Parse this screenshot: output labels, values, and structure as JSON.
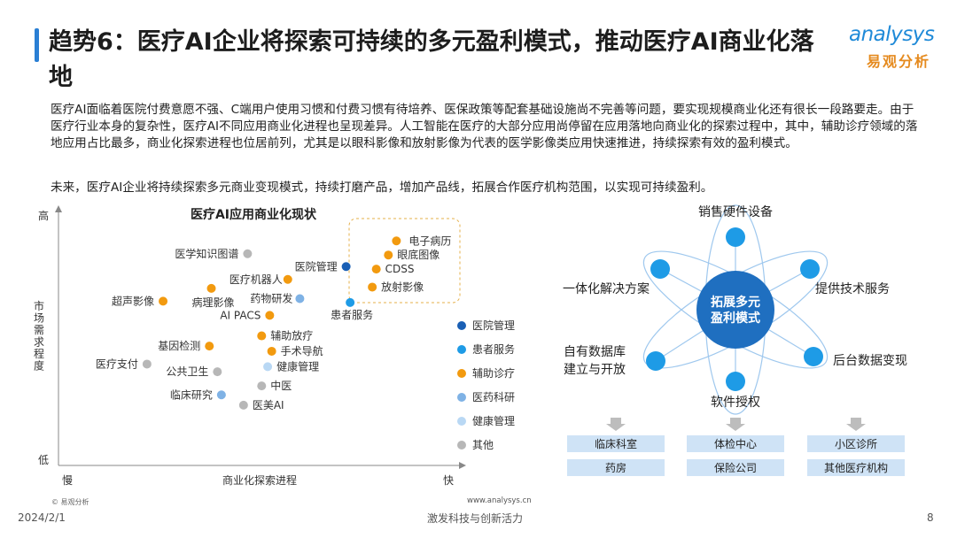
{
  "header": {
    "title": "趋势6：医疗AI企业将探索可持续的多元盈利模式，推动医疗AI商业化落地",
    "logo_en": "analysys",
    "logo_zh": "易观分析"
  },
  "body": {
    "para1": "医疗AI面临着医院付费意愿不强、C端用户使用习惯和付费习惯有待培养、医保政策等配套基础设施尚不完善等问题，要实现规模商业化还有很长一段路要走。由于医疗行业本身的复杂性，医疗AI不同应用商业化进程也呈现差异。人工智能在医疗的大部分应用尚停留在应用落地向商业化的探索过程中，其中，辅助诊疗领域的落地应用占比最多，商业化探索进程也位居前列，尤其是以眼科影像和放射影像为代表的医学影像类应用快速推进，持续探索有效的盈利模式。",
    "para2": "未来，医疗AI企业将持续探索多元商业变现模式，持续打磨产品，增加产品线，拓展合作医疗机构范围，以实现可持续盈利。"
  },
  "colors": {
    "hospital_mgmt": "#1a5fb4",
    "patient_service": "#1e9be6",
    "assist_diagnosis": "#f29a0f",
    "pharma": "#7fb2e5",
    "health_mgmt": "#b9d8f4",
    "other": "#b7b7b7",
    "hub": "#1f6fc0",
    "node": "#1e9be6",
    "box": "#cfe3f6",
    "arrow": "#bdbdbd"
  },
  "chart_data": {
    "type": "scatter",
    "title": "医疗AI应用商业化现状",
    "xlabel": "商业化探索进程",
    "ylabel": "市场需求程度",
    "x_low_label": "慢",
    "x_high_label": "快",
    "y_low_label": "低",
    "y_high_label": "高",
    "xlim": [
      0,
      100
    ],
    "ylim": [
      0,
      100
    ],
    "grid": false,
    "legend_position": "right",
    "series": [
      {
        "name": "医院管理",
        "color_key": "hospital_mgmt",
        "points": [
          {
            "label": "医院管理",
            "x": 71.5,
            "y": 77.5
          }
        ]
      },
      {
        "name": "患者服务",
        "color_key": "patient_service",
        "points": [
          {
            "label": "患者服务",
            "x": 72.5,
            "y": 63.5
          }
        ]
      },
      {
        "name": "辅助诊疗",
        "color_key": "assist_diagnosis",
        "points": [
          {
            "label": "电子病历",
            "x": 84,
            "y": 87.5
          },
          {
            "label": "眼底图像",
            "x": 82,
            "y": 82
          },
          {
            "label": "CDSS",
            "x": 79,
            "y": 76.5
          },
          {
            "label": "放射影像",
            "x": 78,
            "y": 69.5
          },
          {
            "label": "超声影像",
            "x": 26,
            "y": 64
          },
          {
            "label": "病理影像",
            "x": 38,
            "y": 69
          },
          {
            "label": "医疗机器人",
            "x": 57,
            "y": 72.5
          },
          {
            "label": "AI PACS",
            "x": 52.5,
            "y": 58.5
          },
          {
            "label": "辅助放疗",
            "x": 50.5,
            "y": 50.5
          },
          {
            "label": "手术导航",
            "x": 53,
            "y": 44.5
          },
          {
            "label": "基因检测",
            "x": 37.5,
            "y": 46.5
          }
        ]
      },
      {
        "name": "医药科研",
        "color_key": "pharma",
        "points": [
          {
            "label": "药物研发",
            "x": 60,
            "y": 65
          },
          {
            "label": "临床研究",
            "x": 40.5,
            "y": 27.5
          }
        ]
      },
      {
        "name": "健康管理",
        "color_key": "health_mgmt",
        "points": [
          {
            "label": "健康管理",
            "x": 52,
            "y": 38.5
          }
        ]
      },
      {
        "name": "其他",
        "color_key": "other",
        "points": [
          {
            "label": "医学知识图谱",
            "x": 47,
            "y": 82.5
          },
          {
            "label": "医疗支付",
            "x": 22,
            "y": 39.5
          },
          {
            "label": "公共卫生",
            "x": 39.5,
            "y": 36.5
          },
          {
            "label": "中医",
            "x": 50.5,
            "y": 31
          },
          {
            "label": "医美AI",
            "x": 46,
            "y": 23.5
          }
        ]
      }
    ],
    "legend": [
      {
        "label": "医院管理",
        "color_key": "hospital_mgmt"
      },
      {
        "label": "患者服务",
        "color_key": "patient_service"
      },
      {
        "label": "辅助诊疗",
        "color_key": "assist_diagnosis"
      },
      {
        "label": "医药科研",
        "color_key": "pharma"
      },
      {
        "label": "健康管理",
        "color_key": "health_mgmt"
      },
      {
        "label": "其他",
        "color_key": "other"
      }
    ]
  },
  "diagram": {
    "hub_label_1": "拓展多元",
    "hub_label_2": "盈利模式",
    "nodes": [
      {
        "id": "top",
        "label_1": "销售硬件设备",
        "label_2": ""
      },
      {
        "id": "left-top",
        "label_1": "一体化解决方案",
        "label_2": ""
      },
      {
        "id": "right-top",
        "label_1": "提供技术服务",
        "label_2": ""
      },
      {
        "id": "left-bottom",
        "label_1": "自有数据库",
        "label_2": "建立与开放"
      },
      {
        "id": "right-bottom",
        "label_1": "后台数据变现",
        "label_2": ""
      },
      {
        "id": "bottom",
        "label_1": "软件授权",
        "label_2": ""
      }
    ],
    "boxes_row1": [
      "临床科室",
      "体检中心",
      "小区诊所"
    ],
    "boxes_row2": [
      "药房",
      "保险公司",
      "其他医疗机构"
    ]
  },
  "footer": {
    "copyright": "© 易观分析",
    "url": "www.analysys.cn",
    "date": "2024/2/1",
    "slogan": "激发科技与创新活力",
    "page": "8"
  }
}
